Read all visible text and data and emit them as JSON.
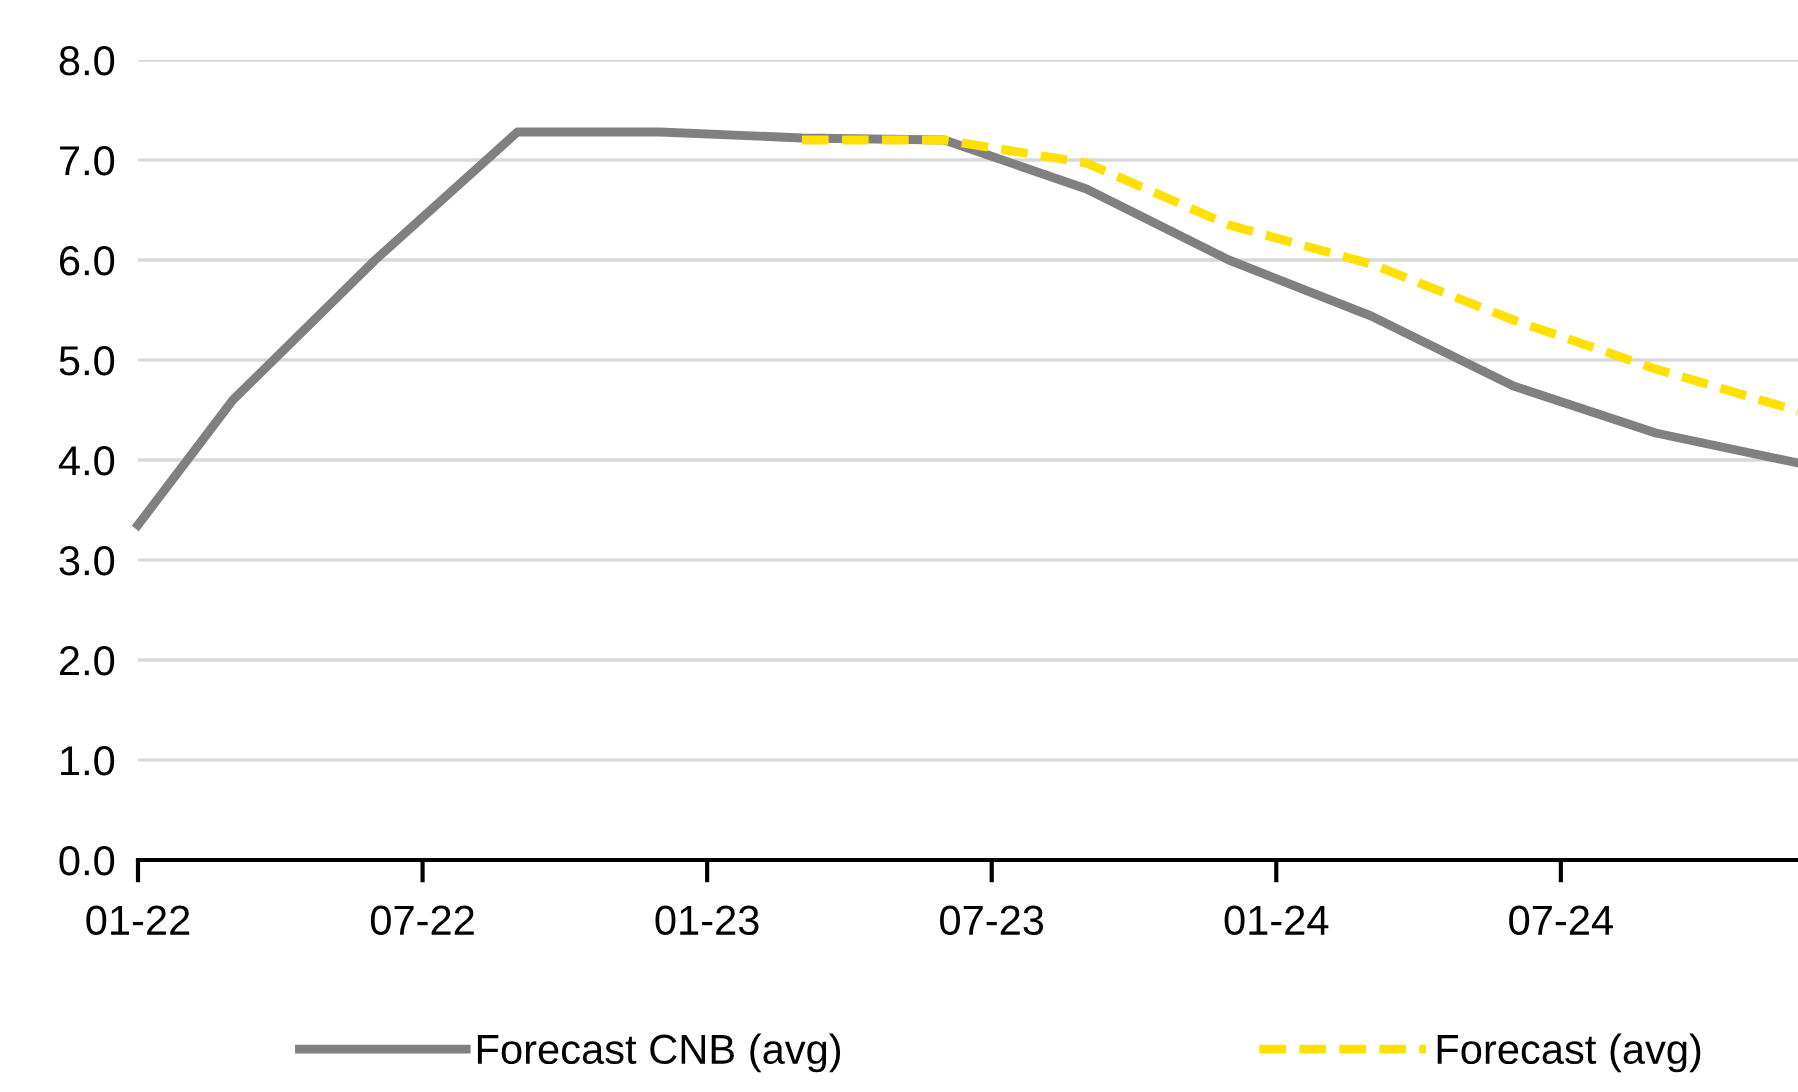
{
  "chart_data": {
    "type": "line",
    "x": [
      "2022-01",
      "2022-03",
      "2022-06",
      "2022-09",
      "2022-12",
      "2023-03",
      "2023-06",
      "2023-09",
      "2023-12",
      "2024-03",
      "2024-06",
      "2024-09",
      "2024-12"
    ],
    "series": [
      {
        "name": "Forecast CNB (avg)",
        "color": "#808080",
        "line_style": "solid",
        "values": [
          3.35,
          4.6,
          6.0,
          7.28,
          7.28,
          7.22,
          7.2,
          6.71,
          6.0,
          5.44,
          4.74,
          4.27,
          3.97
        ]
      },
      {
        "name": "Forecast (avg)",
        "color": "#ffe000",
        "line_style": "dashed",
        "values": [
          null,
          null,
          null,
          null,
          null,
          7.2,
          7.2,
          6.97,
          6.35,
          5.96,
          5.4,
          4.91,
          4.49
        ]
      }
    ],
    "xlim": [
      "2022-01",
      "2024-12"
    ],
    "xticks": [
      {
        "value": "2022-01",
        "label": "01-22"
      },
      {
        "value": "2022-07",
        "label": "07-22"
      },
      {
        "value": "2023-01",
        "label": "01-23"
      },
      {
        "value": "2023-07",
        "label": "07-23"
      },
      {
        "value": "2024-01",
        "label": "01-24"
      },
      {
        "value": "2024-07",
        "label": "07-24"
      }
    ],
    "ylim": [
      0,
      8
    ],
    "yticks": [
      {
        "value": 0,
        "label": "0.0"
      },
      {
        "value": 1,
        "label": "1.0"
      },
      {
        "value": 2,
        "label": "2.0"
      },
      {
        "value": 3,
        "label": "3.0"
      },
      {
        "value": 4,
        "label": "4.0"
      },
      {
        "value": 5,
        "label": "5.0"
      },
      {
        "value": 6,
        "label": "6.0"
      },
      {
        "value": 7,
        "label": "7.0"
      },
      {
        "value": 8,
        "label": "8.0"
      }
    ],
    "grid": "y",
    "legend": "bottom"
  }
}
